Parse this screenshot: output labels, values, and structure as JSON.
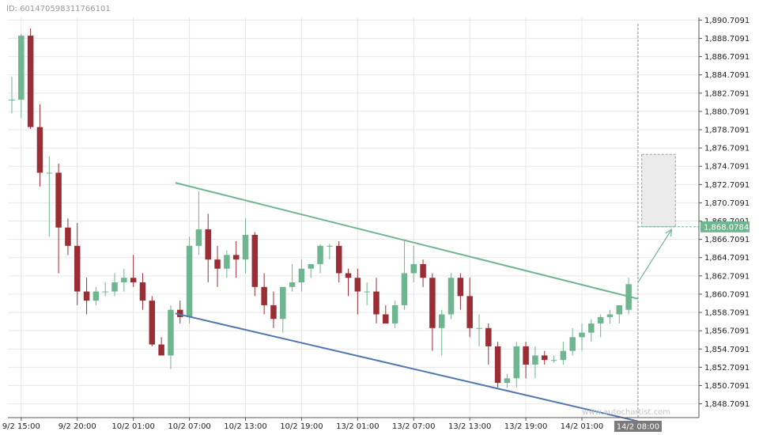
{
  "page": {
    "id_label": "ID: 601470598311766101",
    "watermark": "www.autochartist.com"
  },
  "chart_data": {
    "type": "candlestick",
    "y_ticks": [
      "1,848.7091",
      "1,850.7091",
      "1,852.7091",
      "1,854.7091",
      "1,856.7091",
      "1,858.7091",
      "1,860.7091",
      "1,862.7091",
      "1,864.7091",
      "1,866.7091",
      "1,868.7091",
      "1,870.7091",
      "1,872.7091",
      "1,874.7091",
      "1,876.7091",
      "1,878.7091",
      "1,880.7091",
      "1,882.7091",
      "1,884.7091",
      "1,886.7091",
      "1,888.7091",
      "1,890.7091"
    ],
    "ylim": [
      1847.2,
      1891.0
    ],
    "x_ticks": [
      {
        "label": "9/2 15:00",
        "index": 1
      },
      {
        "label": "9/2 20:00",
        "index": 7
      },
      {
        "label": "10/2 01:00",
        "index": 13
      },
      {
        "label": "10/2 07:00",
        "index": 19
      },
      {
        "label": "10/2 13:00",
        "index": 25
      },
      {
        "label": "10/2 19:00",
        "index": 31
      },
      {
        "label": "13/2 01:00",
        "index": 37
      },
      {
        "label": "13/2 07:00",
        "index": 43
      },
      {
        "label": "13/2 13:00",
        "index": 49
      },
      {
        "label": "13/2 19:00",
        "index": 55
      },
      {
        "label": "14/2 01:00",
        "index": 61
      },
      {
        "label": "14/2 08:00",
        "index": 67,
        "highlight": true
      }
    ],
    "current_price": "1,868.0784",
    "candles": [
      [
        1882.0,
        1884.5,
        1880.5,
        1882.0
      ],
      [
        1882.0,
        1889.2,
        1880.0,
        1889.0
      ],
      [
        1889.0,
        1889.8,
        1878.8,
        1879.0
      ],
      [
        1879.0,
        1881.5,
        1872.5,
        1874.0
      ],
      [
        1874.0,
        1875.8,
        1867.0,
        1874.0
      ],
      [
        1874.0,
        1875.0,
        1863.0,
        1868.0
      ],
      [
        1868.0,
        1869.0,
        1865.0,
        1866.0
      ],
      [
        1866.0,
        1868.5,
        1859.5,
        1861.0
      ],
      [
        1861.0,
        1862.5,
        1858.5,
        1860.0
      ],
      [
        1860.0,
        1861.5,
        1859.5,
        1861.0
      ],
      [
        1861.0,
        1862.0,
        1860.5,
        1861.0
      ],
      [
        1861.0,
        1863.0,
        1860.5,
        1862.0
      ],
      [
        1862.0,
        1863.5,
        1861.0,
        1862.5
      ],
      [
        1862.5,
        1865.0,
        1861.5,
        1862.0
      ],
      [
        1862.0,
        1863.0,
        1859.0,
        1860.0
      ],
      [
        1860.0,
        1860.5,
        1855.0,
        1855.2
      ],
      [
        1855.2,
        1856.0,
        1854.0,
        1854.0
      ],
      [
        1854.0,
        1859.5,
        1852.5,
        1859.0
      ],
      [
        1859.0,
        1860.0,
        1857.5,
        1858.2
      ],
      [
        1858.2,
        1867.0,
        1857.5,
        1866.0
      ],
      [
        1866.0,
        1872.0,
        1865.0,
        1867.8
      ],
      [
        1867.8,
        1869.5,
        1862.0,
        1864.5
      ],
      [
        1864.5,
        1866.0,
        1861.5,
        1863.5
      ],
      [
        1863.5,
        1865.5,
        1862.5,
        1865.0
      ],
      [
        1865.0,
        1866.5,
        1862.5,
        1864.5
      ],
      [
        1864.5,
        1869.0,
        1863.0,
        1867.2
      ],
      [
        1867.2,
        1867.5,
        1860.5,
        1861.5
      ],
      [
        1861.5,
        1863.0,
        1858.5,
        1859.5
      ],
      [
        1859.5,
        1861.0,
        1857.0,
        1858.0
      ],
      [
        1858.0,
        1861.5,
        1856.5,
        1861.5
      ],
      [
        1861.5,
        1864.0,
        1861.0,
        1862.0
      ],
      [
        1862.0,
        1864.5,
        1861.0,
        1863.5
      ],
      [
        1863.5,
        1864.0,
        1862.5,
        1864.0
      ],
      [
        1864.0,
        1866.2,
        1863.0,
        1866.0
      ],
      [
        1866.0,
        1866.2,
        1864.5,
        1866.0
      ],
      [
        1866.0,
        1866.5,
        1862.0,
        1863.0
      ],
      [
        1863.0,
        1863.5,
        1860.5,
        1862.5
      ],
      [
        1862.5,
        1863.5,
        1858.5,
        1861.0
      ],
      [
        1861.0,
        1862.0,
        1859.5,
        1861.0
      ],
      [
        1861.0,
        1862.5,
        1857.5,
        1858.5
      ],
      [
        1858.5,
        1859.5,
        1857.5,
        1857.5
      ],
      [
        1857.5,
        1860.0,
        1857.0,
        1859.5
      ],
      [
        1859.5,
        1866.5,
        1859.0,
        1863.0
      ],
      [
        1863.0,
        1866.0,
        1862.0,
        1864.0
      ],
      [
        1864.0,
        1864.5,
        1861.5,
        1862.5
      ],
      [
        1862.5,
        1863.0,
        1854.5,
        1857.0
      ],
      [
        1857.0,
        1859.0,
        1854.0,
        1858.5
      ],
      [
        1858.5,
        1863.0,
        1858.0,
        1862.5
      ],
      [
        1862.5,
        1863.0,
        1859.0,
        1860.5
      ],
      [
        1860.5,
        1862.5,
        1856.0,
        1857.0
      ],
      [
        1857.0,
        1858.5,
        1855.0,
        1857.0
      ],
      [
        1857.0,
        1857.5,
        1853.0,
        1855.0
      ],
      [
        1855.0,
        1855.5,
        1850.5,
        1851.0
      ],
      [
        1851.0,
        1852.0,
        1850.5,
        1851.5
      ],
      [
        1851.5,
        1855.5,
        1850.5,
        1855.0
      ],
      [
        1855.0,
        1855.5,
        1851.5,
        1853.0
      ],
      [
        1853.0,
        1855.0,
        1851.5,
        1854.0
      ],
      [
        1854.0,
        1854.5,
        1853.0,
        1853.5
      ],
      [
        1853.5,
        1854.0,
        1853.2,
        1853.5
      ],
      [
        1853.5,
        1855.5,
        1853.0,
        1854.5
      ],
      [
        1854.5,
        1857.0,
        1854.0,
        1856.0
      ],
      [
        1856.0,
        1857.5,
        1854.5,
        1856.5
      ],
      [
        1856.5,
        1858.0,
        1855.5,
        1857.5
      ],
      [
        1857.5,
        1858.5,
        1856.0,
        1858.2
      ],
      [
        1858.2,
        1859.0,
        1857.5,
        1858.5
      ],
      [
        1858.5,
        1859.5,
        1857.5,
        1859.5
      ],
      [
        1859.0,
        1862.5,
        1858.5,
        1861.8
      ]
    ],
    "bull_color": "#6fb58f",
    "bear_color": "#9b2d35",
    "resistance_line": {
      "color": "#6fb58f",
      "from": [
        17.5,
        1872.9
      ],
      "to": [
        67,
        1860.2
      ]
    },
    "support_line": {
      "color": "#4f77b0",
      "from": [
        17.5,
        1858.6
      ],
      "to": [
        67,
        1846.8
      ]
    },
    "forecast_zone": {
      "x_range": [
        67.4,
        71.0
      ],
      "y_range": [
        1868.0784,
        1876.0
      ]
    },
    "forecast_arrow": {
      "from": [
        67,
        1862.0
      ],
      "to": [
        70.6,
        1867.8
      ]
    }
  }
}
